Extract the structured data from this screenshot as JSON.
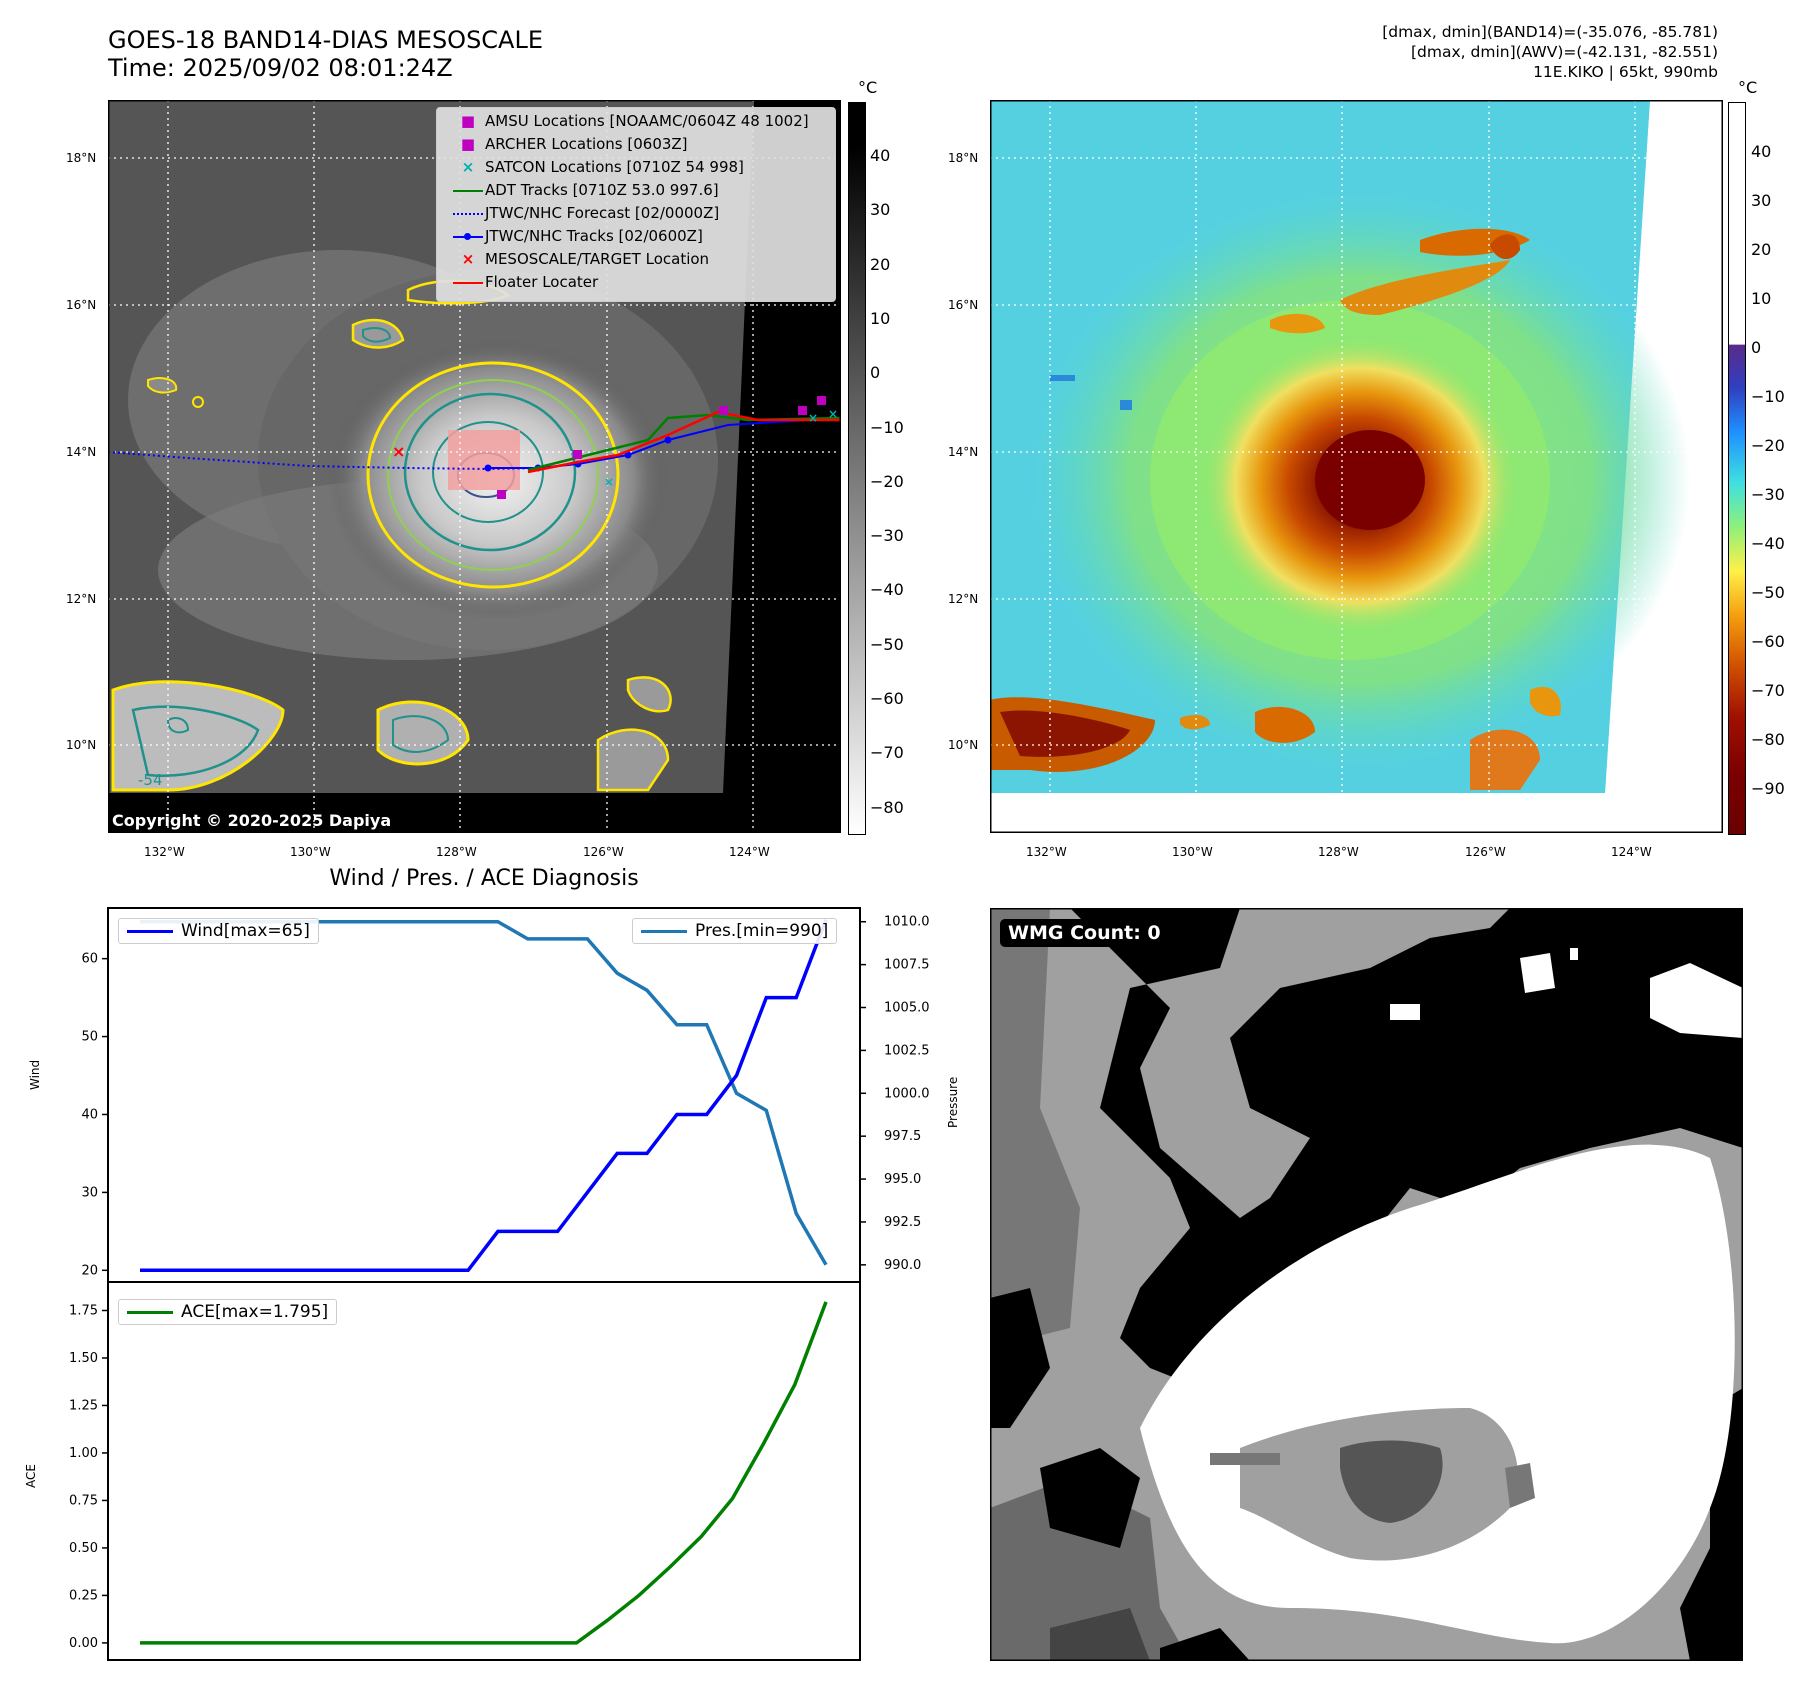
{
  "header": {
    "title_line1": "GOES-18 BAND14-DIAS MESOSCALE",
    "title_line2": "Time: 2025/09/02 08:01:24Z",
    "info_line1": "[dmax, dmin](BAND14)=(-35.076, -85.781)",
    "info_line2": "[dmax, dmin](AWV)=(-42.131, -82.551)",
    "info_line3": "11E.KIKO | 65kt, 990mb"
  },
  "map": {
    "lon_ticks": [
      "132°W",
      "130°W",
      "128°W",
      "126°W",
      "124°W"
    ],
    "lat_ticks": [
      "18°N",
      "16°N",
      "14°N",
      "12°N",
      "10°N"
    ],
    "copyright": "Copyright © 2020-2025 Dapiya",
    "contour_label": "-54",
    "legend": [
      {
        "label": "AMSU Locations [NOAAMC/0604Z 48 1002]",
        "marker": "square",
        "color": "#c000c0"
      },
      {
        "label": "ARCHER Locations [0603Z]",
        "marker": "square",
        "color": "#c000c0"
      },
      {
        "label": "SATCON Locations [0710Z 54 998]",
        "marker": "x",
        "color": "#00b0b0"
      },
      {
        "label": "ADT Tracks [0710Z 53.0 997.6]",
        "marker": "line",
        "color": "#008000"
      },
      {
        "label": "JTWC/NHC Forecast [02/0000Z]",
        "marker": "dotted",
        "color": "#0000ff"
      },
      {
        "label": "JTWC/NHC Tracks [02/0600Z]",
        "marker": "line-dot",
        "color": "#0000ff"
      },
      {
        "label": "MESOSCALE/TARGET Location",
        "marker": "x",
        "color": "#ff0000"
      },
      {
        "label": "Floater Locater",
        "marker": "line",
        "color": "#ff0000"
      }
    ]
  },
  "colorbar_gray": {
    "unit": "°C",
    "ticks": [
      "40",
      "30",
      "20",
      "10",
      "0",
      "−10",
      "−20",
      "−30",
      "−40",
      "−50",
      "−60",
      "−70",
      "−80"
    ]
  },
  "colorbar_color": {
    "unit": "°C",
    "ticks": [
      "40",
      "30",
      "20",
      "10",
      "0",
      "−10",
      "−20",
      "−30",
      "−40",
      "−50",
      "−60",
      "−70",
      "−80",
      "−90"
    ]
  },
  "wmg": {
    "label": "WMG Count: 0"
  },
  "chart_data": [
    {
      "type": "line",
      "title": "Wind / Pres. / ACE Diagnosis",
      "ylabel": "Wind",
      "ylabel_right": "Pressure",
      "ylim": [
        18.5,
        66.5
      ],
      "ylim_right": [
        989,
        1010.8
      ],
      "yticks": [
        "20",
        "30",
        "40",
        "50",
        "60"
      ],
      "yticks_right": [
        "1010.0",
        "1007.5",
        "1005.0",
        "1002.5",
        "1000.0",
        "997.5",
        "995.0",
        "992.5",
        "990.0"
      ],
      "grid": false,
      "series": [
        {
          "name": "Wind[max=65]",
          "color": "#0000ff",
          "axis": "left",
          "values": [
            20,
            20,
            20,
            20,
            20,
            20,
            20,
            20,
            20,
            20,
            20,
            20,
            25,
            25,
            25,
            30,
            35,
            35,
            40,
            40,
            45,
            55,
            55,
            65
          ]
        },
        {
          "name": "Pres.[min=990]",
          "color": "#1f77b4",
          "axis": "right",
          "values": [
            1010,
            1010,
            1010,
            1010,
            1010,
            1010,
            1010,
            1010,
            1010,
            1010,
            1010,
            1010,
            1010,
            1009,
            1009,
            1009,
            1007,
            1006,
            1004,
            1004,
            1000,
            999,
            993,
            990
          ]
        }
      ]
    },
    {
      "type": "line",
      "ylabel": "ACE",
      "ylim": [
        -0.09,
        1.9
      ],
      "yticks": [
        "0.00",
        "0.25",
        "0.50",
        "0.75",
        "1.00",
        "1.25",
        "1.50",
        "1.75"
      ],
      "grid": false,
      "series": [
        {
          "name": "ACE[max=1.795]",
          "color": "#008000",
          "axis": "left",
          "values": [
            0,
            0,
            0,
            0,
            0,
            0,
            0,
            0,
            0,
            0,
            0,
            0,
            0,
            0,
            0,
            0.12,
            0.25,
            0.4,
            0.56,
            0.76,
            1.05,
            1.36,
            1.795
          ]
        }
      ]
    }
  ]
}
